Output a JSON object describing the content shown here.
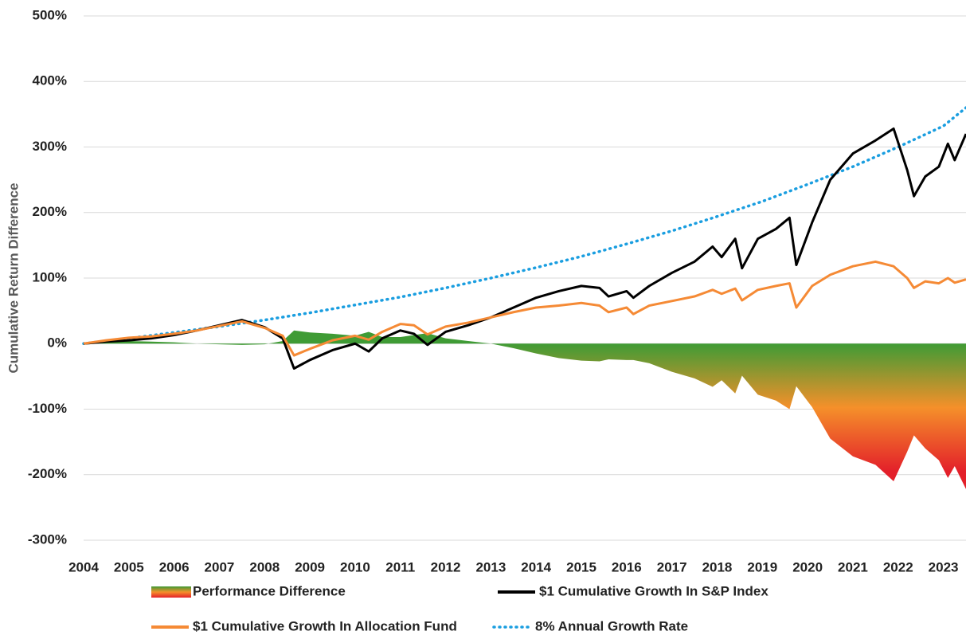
{
  "chart_data": {
    "type": "line",
    "y_label": "Cumulative Return Difference",
    "x": [
      2004.0,
      2004.5,
      2005.0,
      2005.5,
      2006.0,
      2006.5,
      2007.0,
      2007.5,
      2008.0,
      2008.4,
      2008.65,
      2009.0,
      2009.5,
      2010.0,
      2010.3,
      2010.6,
      2011.0,
      2011.3,
      2011.6,
      2012.0,
      2012.5,
      2013.0,
      2013.5,
      2014.0,
      2014.5,
      2015.0,
      2015.4,
      2015.6,
      2016.0,
      2016.15,
      2016.5,
      2017.0,
      2017.5,
      2017.9,
      2018.1,
      2018.4,
      2018.55,
      2018.9,
      2019.3,
      2019.6,
      2019.75,
      2020.1,
      2020.5,
      2021.0,
      2021.5,
      2021.9,
      2022.2,
      2022.35,
      2022.6,
      2022.9,
      2023.1,
      2023.25,
      2023.5
    ],
    "series": [
      {
        "name": "Performance Difference",
        "kind": "area",
        "colors": [
          "#3f9b35",
          "#f5902a",
          "#e3202a"
        ],
        "values": [
          0,
          2,
          4,
          3,
          2,
          0,
          -1,
          -2,
          -1,
          4,
          20,
          17,
          15,
          12,
          18,
          10,
          10,
          13,
          16,
          8,
          4,
          0,
          -7,
          -15,
          -22,
          -26,
          -27,
          -24,
          -25,
          -25,
          -30,
          -43,
          -53,
          -66,
          -56,
          -76,
          -49,
          -78,
          -87,
          -100,
          -65,
          -97,
          -145,
          -172,
          -185,
          -210,
          -165,
          -140,
          -160,
          -178,
          -205,
          -187,
          -222
        ]
      },
      {
        "name": "$1 Cumulative Growth In S&P Index",
        "kind": "line",
        "color": "#000000",
        "values": [
          0,
          3,
          5,
          8,
          13,
          20,
          28,
          36,
          25,
          8,
          -38,
          -25,
          -10,
          0,
          -12,
          8,
          20,
          15,
          -2,
          18,
          28,
          40,
          55,
          70,
          80,
          88,
          85,
          72,
          80,
          70,
          88,
          108,
          125,
          148,
          132,
          160,
          115,
          160,
          175,
          192,
          120,
          185,
          250,
          290,
          310,
          328,
          265,
          225,
          255,
          270,
          305,
          280,
          320
        ]
      },
      {
        "name": "$1 Cumulative Growth In Allocation Fund",
        "kind": "line",
        "color": "#f58a35",
        "values": [
          0,
          5,
          9,
          11,
          15,
          20,
          27,
          34,
          24,
          12,
          -18,
          -8,
          5,
          12,
          6,
          18,
          30,
          28,
          14,
          26,
          32,
          40,
          48,
          55,
          58,
          62,
          58,
          48,
          55,
          45,
          58,
          65,
          72,
          82,
          76,
          84,
          66,
          82,
          88,
          92,
          55,
          88,
          105,
          118,
          125,
          118,
          100,
          85,
          95,
          92,
          100,
          93,
          98
        ]
      },
      {
        "name": "8% Annual Growth Rate",
        "kind": "dotted",
        "color": "#1a9ee0",
        "x": [
          2004,
          2005,
          2006,
          2007,
          2008,
          2009,
          2010,
          2011,
          2012,
          2013,
          2014,
          2015,
          2016,
          2017,
          2018,
          2019,
          2020,
          2021,
          2022,
          2023,
          2023.5
        ],
        "values": [
          0,
          8,
          17,
          26,
          36,
          47,
          59,
          71,
          85,
          100,
          116,
          133,
          152,
          172,
          194,
          217,
          243,
          270,
          300,
          332,
          360
        ]
      }
    ],
    "xlim": [
      2004,
      2023.5
    ],
    "xticks": [
      2004,
      2005,
      2006,
      2007,
      2008,
      2009,
      2010,
      2011,
      2012,
      2013,
      2014,
      2015,
      2016,
      2017,
      2018,
      2019,
      2020,
      2021,
      2022,
      2023
    ],
    "ylim": [
      -300,
      500
    ],
    "yticks": [
      {
        "value": -300,
        "label": "-300%"
      },
      {
        "value": -200,
        "label": "-200%"
      },
      {
        "value": -100,
        "label": "-100%"
      },
      {
        "value": 0,
        "label": "0%"
      },
      {
        "value": 100,
        "label": "100%"
      },
      {
        "value": 200,
        "label": "200%"
      },
      {
        "value": 300,
        "label": "300%"
      },
      {
        "value": 400,
        "label": "400%"
      },
      {
        "value": 500,
        "label": "500%"
      }
    ],
    "grid": true
  }
}
